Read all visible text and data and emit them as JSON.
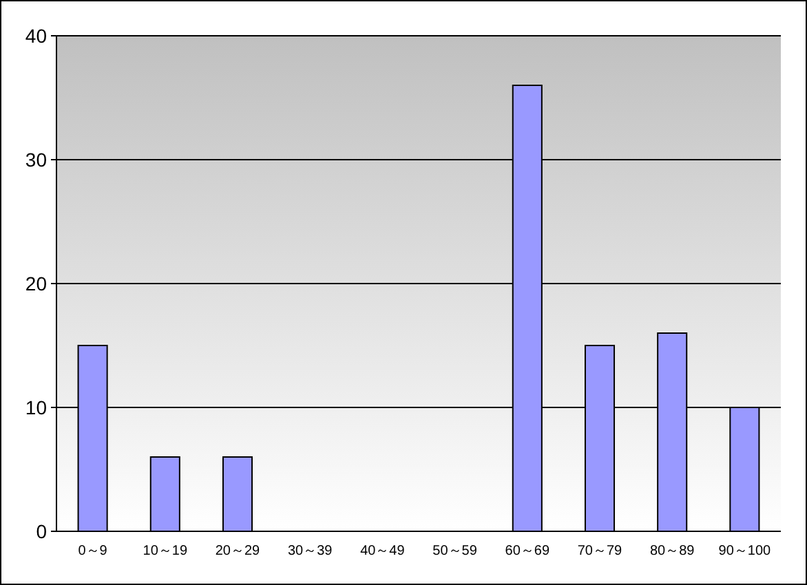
{
  "chart_data": {
    "type": "bar",
    "categories": [
      "0～9",
      "10～19",
      "20～29",
      "30～39",
      "40～49",
      "50～59",
      "60～69",
      "70～79",
      "80～89",
      "90～100"
    ],
    "values": [
      15,
      6,
      6,
      0,
      0,
      0,
      36,
      15,
      16,
      10
    ],
    "color": "#9999ff",
    "ylim": [
      0,
      40
    ],
    "yticks": [
      0,
      10,
      20,
      30,
      40
    ],
    "grid": "y"
  }
}
